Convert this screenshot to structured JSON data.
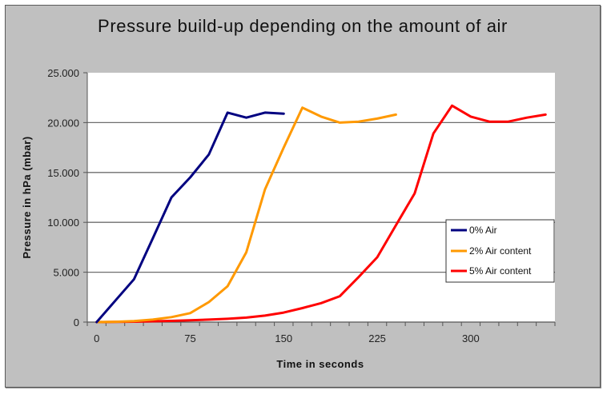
{
  "title": "Pressure build-up depending on the amount of air",
  "chart_data": {
    "type": "line",
    "title": "Pressure build-up depending on the amount of air",
    "xlabel": "Time in seconds",
    "ylabel": "Pressure in hPa (mbar)",
    "xlim": [
      -7.5,
      367.5
    ],
    "ylim": [
      0,
      25000
    ],
    "x_tick_labels": [
      "0",
      "75",
      "150",
      "225",
      "300"
    ],
    "x_tick_values": [
      0,
      75,
      150,
      225,
      300
    ],
    "x_minor_tick_step": 15,
    "y_tick_labels": [
      "0",
      "5.000",
      "10.000",
      "15.000",
      "20.000",
      "25.000"
    ],
    "y_tick_values": [
      0,
      5000,
      10000,
      15000,
      20000,
      25000
    ],
    "grid": "horizontal major gridlines",
    "legend_position": "right, inside plot",
    "series": [
      {
        "name": "0% Air",
        "color": "#000080",
        "x": [
          0,
          15,
          30,
          45,
          60,
          75,
          90,
          105,
          120,
          135,
          150
        ],
        "values": [
          0,
          2150,
          4300,
          8400,
          12500,
          14500,
          16800,
          21000,
          20500,
          21000,
          20900
        ]
      },
      {
        "name": "2% Air content",
        "color": "#ff9900",
        "x": [
          0,
          15,
          30,
          45,
          60,
          75,
          90,
          105,
          120,
          135,
          150,
          165,
          180,
          195,
          210,
          225,
          240
        ],
        "values": [
          0,
          30,
          100,
          250,
          500,
          900,
          2000,
          3600,
          7000,
          13300,
          17500,
          21500,
          20600,
          20000,
          20100,
          20400,
          20800
        ]
      },
      {
        "name": "5% Air content",
        "color": "#ff0000",
        "x": [
          0,
          15,
          30,
          45,
          60,
          75,
          90,
          105,
          120,
          135,
          150,
          165,
          180,
          195,
          210,
          225,
          240,
          255,
          270,
          285,
          300,
          315,
          330,
          345,
          360
        ],
        "values": [
          0,
          20,
          40,
          80,
          120,
          180,
          250,
          330,
          450,
          650,
          950,
          1400,
          1900,
          2600,
          4500,
          6500,
          9700,
          12900,
          18900,
          21700,
          20600,
          20100,
          20100,
          20500,
          20800
        ]
      }
    ]
  },
  "legend": {
    "items": [
      "0% Air",
      "2% Air content",
      "5% Air content"
    ]
  },
  "axes": {
    "x_title": "Time in seconds",
    "y_title": "Pressure in hPa (mbar)"
  }
}
